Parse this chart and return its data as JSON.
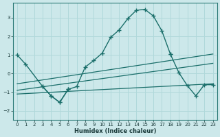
{
  "xlabel": "Humidex (Indice chaleur)",
  "bg_color": "#cce8ea",
  "grid_color": "#b0d8da",
  "line_color": "#1a6e6a",
  "xlim": [
    -0.5,
    23.5
  ],
  "ylim": [
    -2.5,
    3.8
  ],
  "xticks": [
    0,
    1,
    2,
    3,
    4,
    5,
    6,
    7,
    8,
    9,
    10,
    11,
    12,
    13,
    14,
    15,
    16,
    17,
    18,
    19,
    20,
    21,
    22,
    23
  ],
  "yticks": [
    -2,
    -1,
    0,
    1,
    2,
    3
  ],
  "main_curve": {
    "x": [
      0,
      1,
      3,
      4,
      5,
      6,
      7,
      8,
      9,
      10,
      11,
      12,
      13,
      14,
      15,
      16,
      17,
      18
    ],
    "y": [
      1.0,
      0.5,
      -0.7,
      -1.2,
      -1.55,
      -0.85,
      -0.7,
      0.35,
      0.7,
      1.1,
      1.95,
      2.35,
      2.95,
      3.4,
      3.45,
      3.1,
      2.3,
      1.05
    ]
  },
  "secondary_curve": {
    "segments": [
      {
        "x": [
          3,
          4,
          5,
          6
        ],
        "y": [
          -0.7,
          -1.2,
          -1.55,
          -0.85
        ]
      },
      {
        "x": [
          18,
          19,
          20,
          21,
          22,
          23
        ],
        "y": [
          1.05,
          0.05,
          -0.65,
          -1.2,
          -0.6,
          -0.6
        ]
      }
    ]
  },
  "upper_trend": {
    "x": [
      0,
      23
    ],
    "y": [
      -0.55,
      1.05
    ]
  },
  "lower_trend": {
    "x": [
      0,
      23
    ],
    "y": [
      -0.9,
      0.55
    ]
  },
  "extra_trend": {
    "x": [
      0,
      23
    ],
    "y": [
      -1.1,
      -0.55
    ]
  }
}
